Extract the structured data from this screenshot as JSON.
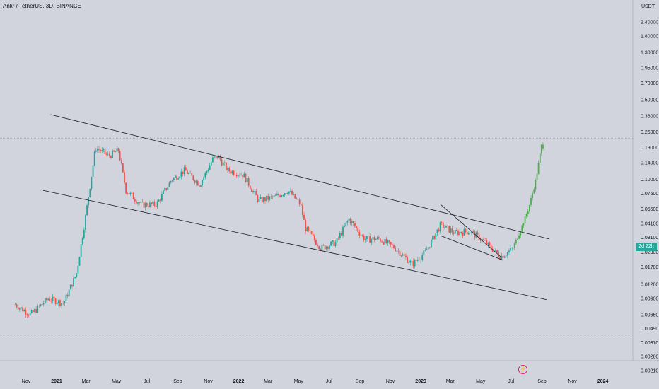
{
  "header": {
    "title": "Ankr / TetherUS, 3D, BINANCE",
    "unit": "USDT"
  },
  "price_tag": "2d 22h",
  "flash_icon": "flash-icon",
  "colors": {
    "up": "#26a69a",
    "down": "#ef5350",
    "projection": "#4caf50",
    "line": "#2a2e39",
    "background": "#d1d4dc"
  },
  "chart_data": {
    "type": "candlestick",
    "scale": "log",
    "y_ticks": [
      "2.40000",
      "1.80000",
      "1.30000",
      "0.95000",
      "0.70000",
      "0.50000",
      "0.36000",
      "0.26000",
      "0.19000",
      "0.14000",
      "0.10000",
      "0.07500",
      "0.05500",
      "0.04100",
      "0.03100",
      "0.02300",
      "0.01700",
      "0.01200",
      "0.00900",
      "0.00650",
      "0.00490",
      "0.00370",
      "0.00280",
      "0.00210"
    ],
    "x_ticks": [
      "Nov",
      "2021",
      "Mar",
      "May",
      "Jul",
      "Sep",
      "Nov",
      "2022",
      "Mar",
      "May",
      "Jul",
      "Sep",
      "Nov",
      "2023",
      "Mar",
      "May",
      "Jul",
      "Sep",
      "Nov",
      "2024"
    ],
    "price_path": [
      {
        "date": "2020-10-10",
        "price": 0.008
      },
      {
        "date": "2020-11-10",
        "price": 0.0065
      },
      {
        "date": "2020-12-15",
        "price": 0.009
      },
      {
        "date": "2021-01-15",
        "price": 0.0082
      },
      {
        "date": "2021-02-10",
        "price": 0.015
      },
      {
        "date": "2021-03-01",
        "price": 0.05
      },
      {
        "date": "2021-03-20",
        "price": 0.19
      },
      {
        "date": "2021-04-15",
        "price": 0.16
      },
      {
        "date": "2021-05-05",
        "price": 0.18
      },
      {
        "date": "2021-05-20",
        "price": 0.08
      },
      {
        "date": "2021-06-20",
        "price": 0.06
      },
      {
        "date": "2021-07-20",
        "price": 0.06
      },
      {
        "date": "2021-08-20",
        "price": 0.1
      },
      {
        "date": "2021-09-15",
        "price": 0.12
      },
      {
        "date": "2021-10-15",
        "price": 0.09
      },
      {
        "date": "2021-11-10",
        "price": 0.15
      },
      {
        "date": "2021-11-20",
        "price": 0.16
      },
      {
        "date": "2021-12-10",
        "price": 0.12
      },
      {
        "date": "2022-01-10",
        "price": 0.11
      },
      {
        "date": "2022-02-10",
        "price": 0.065
      },
      {
        "date": "2022-03-15",
        "price": 0.07
      },
      {
        "date": "2022-04-10",
        "price": 0.08
      },
      {
        "date": "2022-05-05",
        "price": 0.06
      },
      {
        "date": "2022-05-15",
        "price": 0.037
      },
      {
        "date": "2022-06-15",
        "price": 0.025
      },
      {
        "date": "2022-07-15",
        "price": 0.028
      },
      {
        "date": "2022-08-10",
        "price": 0.045
      },
      {
        "date": "2022-09-10",
        "price": 0.03
      },
      {
        "date": "2022-10-10",
        "price": 0.03
      },
      {
        "date": "2022-11-10",
        "price": 0.025
      },
      {
        "date": "2022-12-15",
        "price": 0.018
      },
      {
        "date": "2023-01-10",
        "price": 0.023
      },
      {
        "date": "2023-02-10",
        "price": 0.04
      },
      {
        "date": "2023-03-10",
        "price": 0.034
      },
      {
        "date": "2023-04-10",
        "price": 0.035
      },
      {
        "date": "2023-05-10",
        "price": 0.028
      },
      {
        "date": "2023-06-10",
        "price": 0.021
      },
      {
        "date": "2023-06-25",
        "price": 0.023
      },
      {
        "date": "2023-07-05",
        "price": 0.025
      }
    ],
    "projection": [
      {
        "date": "2023-07-05",
        "price": 0.025
      },
      {
        "date": "2023-07-20",
        "price": 0.036
      },
      {
        "date": "2023-08-05",
        "price": 0.055
      },
      {
        "date": "2023-08-20",
        "price": 0.1
      },
      {
        "date": "2023-09-01",
        "price": 0.21
      },
      {
        "date": "2023-09-05",
        "price": 0.18
      }
    ],
    "trendlines": [
      {
        "from": {
          "date": "2020-12-20",
          "price": 0.37
        },
        "to": {
          "date": "2023-09-15",
          "price": 0.03
        }
      },
      {
        "from": {
          "date": "2020-12-05",
          "price": 0.08
        },
        "to": {
          "date": "2023-09-10",
          "price": 0.0088
        }
      },
      {
        "from": {
          "date": "2023-02-10",
          "price": 0.06
        },
        "to": {
          "date": "2023-06-10",
          "price": 0.021
        }
      },
      {
        "from": {
          "date": "2023-02-10",
          "price": 0.032
        },
        "to": {
          "date": "2023-06-15",
          "price": 0.0195
        }
      }
    ],
    "horizontal_lines": [
      {
        "price": 0.23
      },
      {
        "price": 0.0043
      }
    ]
  }
}
